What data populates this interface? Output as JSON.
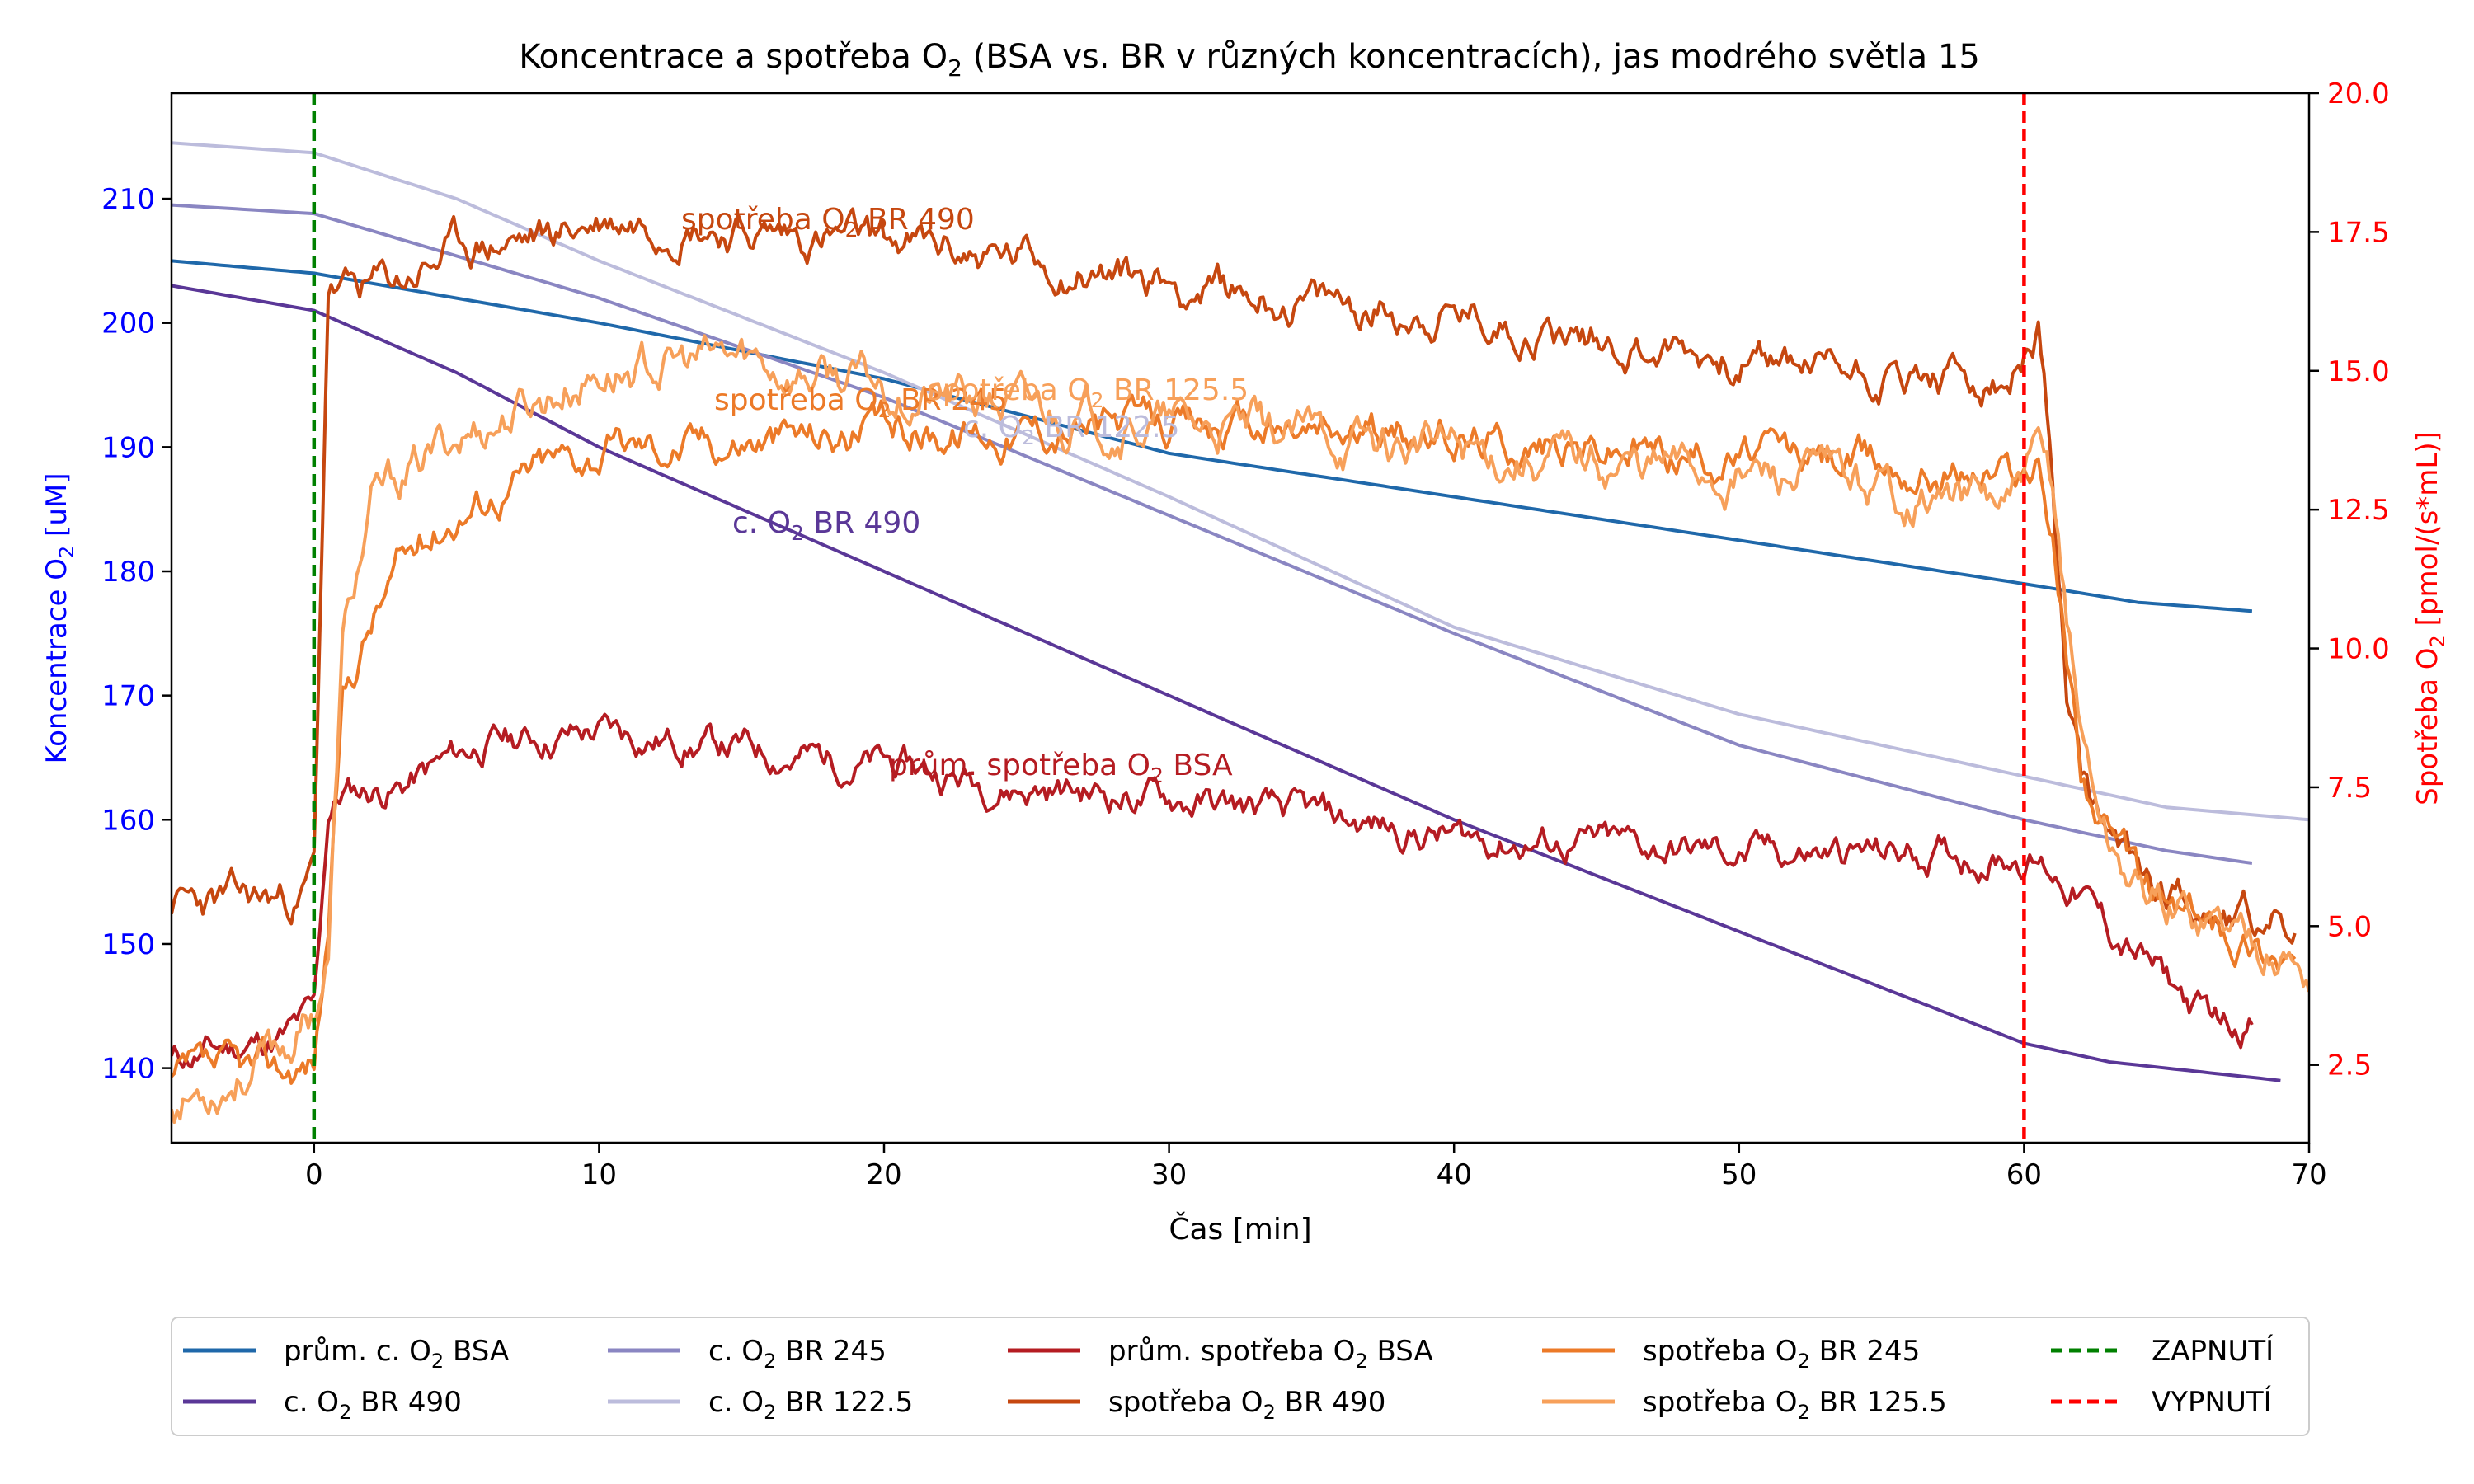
{
  "chart_data": {
    "type": "line",
    "title_main": "Koncentrace a spotřeba O",
    "title_sub": "2",
    "title_rest": " (BSA vs. BR v různých koncentracích), jas modrého světla 15",
    "xlabel": "Čas [min]",
    "ylabel_left_main": "Koncentrace O",
    "ylabel_left_sub": "2",
    "ylabel_left_rest": " [uM]",
    "ylabel_right_main": "Spotřeba O",
    "ylabel_right_sub": "2",
    "ylabel_right_rest": " [pmol/(s*mL)]",
    "xlim": [
      -5,
      70
    ],
    "ylim_left": [
      134,
      218.5
    ],
    "ylim_right": [
      1.1,
      20
    ],
    "x_ticks": [
      "0",
      "10",
      "20",
      "30",
      "40",
      "50",
      "60",
      "70"
    ],
    "x_tick_values": [
      0,
      10,
      20,
      30,
      40,
      50,
      60,
      70
    ],
    "y_left_ticks": [
      "140",
      "150",
      "160",
      "170",
      "180",
      "190",
      "200",
      "210"
    ],
    "y_left_tick_values": [
      140,
      150,
      160,
      170,
      180,
      190,
      200,
      210
    ],
    "y_right_ticks": [
      "2.5",
      "5.0",
      "7.5",
      "10.0",
      "12.5",
      "15.0",
      "17.5",
      "20.0"
    ],
    "y_right_tick_values": [
      2.5,
      5.0,
      7.5,
      10.0,
      12.5,
      15.0,
      17.5,
      20.0
    ],
    "vlines": [
      {
        "x": 0,
        "color": "#008000",
        "label": "ZAPNUTÍ"
      },
      {
        "x": 60,
        "color": "#ff0000",
        "label": "VYPNUTÍ"
      }
    ],
    "series": [
      {
        "name_main": "prům. c. O",
        "name_sub": "2",
        "name_rest": " BSA",
        "axis": "left",
        "color": "#1f68aa",
        "x": [
          -5,
          0,
          10,
          20,
          30,
          40,
          50,
          60,
          64,
          68
        ],
        "y": [
          205,
          204,
          200,
          195.5,
          189.5,
          186,
          182.5,
          179,
          177.5,
          176.8
        ]
      },
      {
        "name_main": "c. O",
        "name_sub": "2",
        "name_rest": " BR 490",
        "axis": "left",
        "color": "#5a3797",
        "x": [
          -5,
          0,
          5,
          10,
          20,
          30,
          40,
          50,
          55,
          60,
          63,
          69
        ],
        "y": [
          203,
          201,
          196,
          190,
          180,
          170,
          160,
          151,
          146.5,
          142,
          140.5,
          139
        ]
      },
      {
        "name_main": "c. O",
        "name_sub": "2",
        "name_rest": " BR 245",
        "axis": "left",
        "color": "#8a86c2",
        "x": [
          -5,
          0,
          10,
          20,
          30,
          40,
          50,
          60,
          65,
          68
        ],
        "y": [
          209.5,
          208.8,
          202,
          194,
          184.5,
          175,
          166,
          160,
          157.5,
          156.5
        ]
      },
      {
        "name_main": "c. O",
        "name_sub": "2",
        "name_rest": " BR 122.5",
        "axis": "left",
        "color": "#bcbcdc",
        "x": [
          -5,
          0,
          5,
          10,
          20,
          30,
          40,
          50,
          60,
          65,
          70
        ],
        "y": [
          214.5,
          213.7,
          210,
          205,
          196,
          186,
          175.5,
          168.5,
          163.5,
          161,
          160
        ]
      },
      {
        "name_main": "prům. spotřeba O",
        "name_sub": "2",
        "name_rest": " BSA",
        "axis": "right",
        "color": "#b51c22",
        "noise": 0.3,
        "seed": 11,
        "x": [
          -5,
          -1,
          0,
          0.5,
          1,
          3,
          6,
          10,
          15,
          20,
          25,
          30,
          40,
          50,
          60,
          61,
          62,
          63,
          64,
          65,
          66,
          67,
          68
        ],
        "y": [
          2.6,
          3.0,
          3.4,
          7.0,
          7.4,
          7.5,
          8.3,
          8.5,
          8.2,
          7.9,
          7.5,
          7.3,
          6.6,
          6.3,
          6.3,
          6.0,
          5.6,
          4.9,
          4.5,
          4.0,
          3.5,
          3.3,
          3.3
        ]
      },
      {
        "name_main": "spotřeba O",
        "name_sub": "2",
        "name_rest": " BR 490",
        "axis": "right",
        "color": "#c6470f",
        "noise": 0.35,
        "seed": 23,
        "x": [
          -5,
          -0.5,
          0,
          0.5,
          1,
          3,
          5,
          8,
          10,
          13,
          15,
          20,
          25,
          30,
          35,
          40,
          45,
          50,
          55,
          59.5,
          60.5,
          61,
          61.5,
          62,
          63,
          64,
          65,
          66,
          67,
          68,
          69,
          69.5
        ],
        "y": [
          5.4,
          5.5,
          6.0,
          16.5,
          16.4,
          16.6,
          17.2,
          17.4,
          17.7,
          17.8,
          17.5,
          17.3,
          17.0,
          16.6,
          16.2,
          16.0,
          15.6,
          15.2,
          15.0,
          14.6,
          15.7,
          13.0,
          9.0,
          7.5,
          6.5,
          6.0,
          5.7,
          5.5,
          5.3,
          5.1,
          5.0,
          4.9
        ]
      },
      {
        "name_main": "spotřeba O",
        "name_sub": "2",
        "name_rest": " BR 245",
        "axis": "right",
        "color": "#ec7a28",
        "noise": 0.35,
        "seed": 37,
        "x": [
          -5,
          -1,
          0,
          0.5,
          1,
          2,
          3,
          5,
          8,
          10,
          15,
          20,
          25,
          30,
          40,
          50,
          59.5,
          60.5,
          61,
          62,
          63,
          64,
          65,
          66,
          67,
          68,
          69,
          69.5
        ],
        "y": [
          2.2,
          2.4,
          2.6,
          5.0,
          9.0,
          10.5,
          11.5,
          12.5,
          13.3,
          13.6,
          13.8,
          13.9,
          14.0,
          14.0,
          13.8,
          13.5,
          13.2,
          13.3,
          12.0,
          8.0,
          6.5,
          5.8,
          5.4,
          5.2,
          4.9,
          4.8,
          4.6,
          4.5
        ]
      },
      {
        "name_main": "spotřeba O",
        "name_sub": "2",
        "name_rest": " BR 125.5",
        "axis": "right",
        "color": "#f7a05a",
        "noise": 0.4,
        "seed": 53,
        "x": [
          -5,
          -1,
          0,
          0.5,
          1,
          2,
          3,
          5,
          8,
          10,
          15,
          20,
          25,
          30,
          40,
          50,
          59.5,
          60.5,
          61,
          62,
          63,
          64,
          65,
          66,
          67,
          68,
          69,
          70
        ],
        "y": [
          1.8,
          2.8,
          3.5,
          4.5,
          10.0,
          12.5,
          13.0,
          13.8,
          14.5,
          15.0,
          15.2,
          14.7,
          14.3,
          14.0,
          13.6,
          13.2,
          12.6,
          13.3,
          12.8,
          8.5,
          6.5,
          5.7,
          5.4,
          5.3,
          5.1,
          4.9,
          4.6,
          4.1
        ]
      }
    ],
    "inline_labels": [
      {
        "main": "spotřeba O",
        "sub": "2",
        "rest": " BR 490",
        "color": "#c6470f"
      },
      {
        "main": "spotřeba O",
        "sub": "2",
        "rest": " BR 245",
        "color": "#ec7a28"
      },
      {
        "main": "spotřeba O",
        "sub": "2",
        "rest": " BR 125.5",
        "color": "#f7a05a"
      },
      {
        "main": "c. O",
        "sub": "2",
        "rest": " BR 122.5",
        "color": "#bcbcdc"
      },
      {
        "main": "c. O",
        "sub": "2",
        "rest": " BR 490",
        "color": "#5a3797"
      },
      {
        "main": "prům. spotřeba O",
        "sub": "2",
        "rest": " BSA",
        "color": "#b51c22"
      }
    ]
  }
}
